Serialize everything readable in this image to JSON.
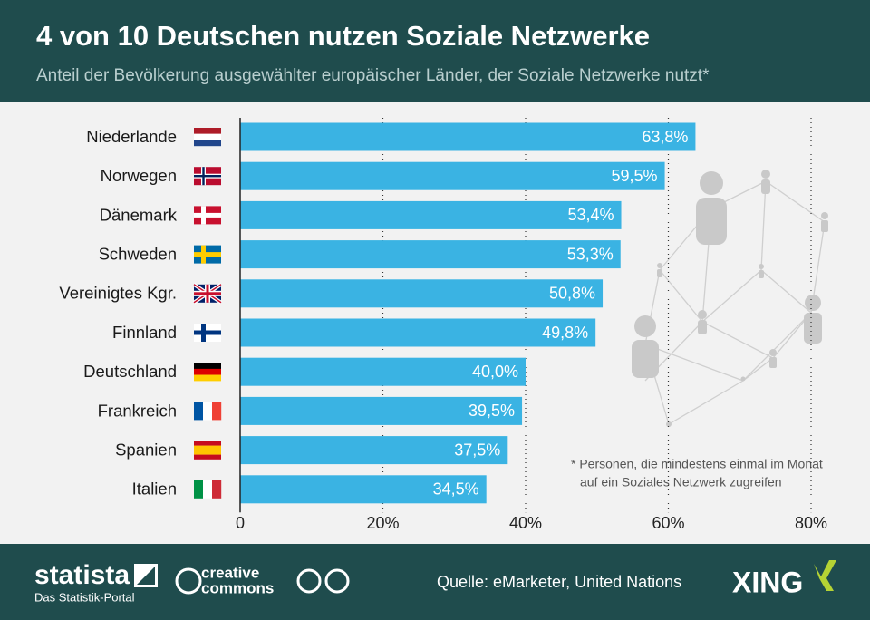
{
  "chart_data": {
    "type": "bar",
    "orientation": "horizontal",
    "title": "4 von 10 Deutschen nutzen Soziale Netzwerke",
    "subtitle": "Anteil der Bevölkerung ausgewählter europäischer Länder, der Soziale Netzwerke nutzt*",
    "categories": [
      "Niederlande",
      "Norwegen",
      "Dänemark",
      "Schweden",
      "Vereinigtes Kgr.",
      "Finnland",
      "Deutschland",
      "Frankreich",
      "Spanien",
      "Italien"
    ],
    "values": [
      63.8,
      59.5,
      53.4,
      53.3,
      50.8,
      49.8,
      40.0,
      39.5,
      37.5,
      34.5
    ],
    "value_labels": [
      "63,8%",
      "59,5%",
      "53,4%",
      "53,3%",
      "50,8%",
      "49,8%",
      "40,0%",
      "39,5%",
      "37,5%",
      "34,5%"
    ],
    "color": "#3ab3e3",
    "xlim": [
      0,
      80
    ],
    "xticks": [
      0,
      {
        "value": 20,
        "label": "20%"
      },
      {
        "value": 40,
        "label": "40%"
      },
      {
        "value": 60,
        "label": "60%"
      },
      {
        "value": 80,
        "label": "80%"
      }
    ],
    "grid": true,
    "footnote": [
      "* Personen, die mindestens einmal im Monat",
      "auf ein Soziales Netzwerk zugreifen"
    ]
  },
  "footer": {
    "brand": "statista",
    "brand_tagline": "Das Statistik-Portal",
    "license": [
      "creative",
      "commons"
    ],
    "source": "Quelle: eMarketer, United Nations",
    "partner": "XING"
  }
}
